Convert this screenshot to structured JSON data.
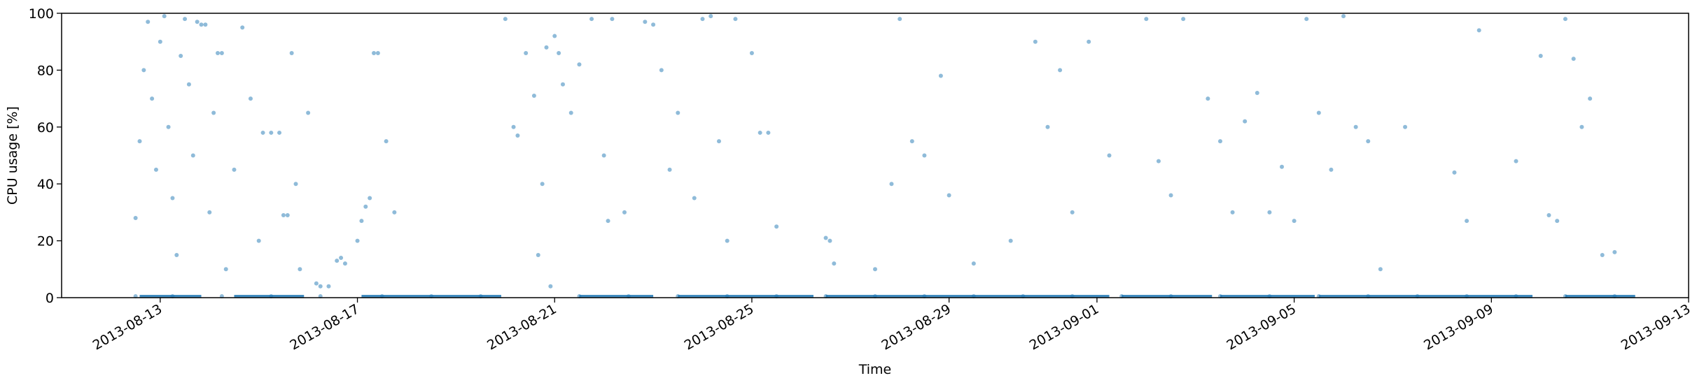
{
  "chart_data": {
    "type": "scatter",
    "title": "",
    "xlabel": "Time",
    "ylabel": "CPU usage [%]",
    "xlim": [
      "2013-08-11",
      "2013-09-13"
    ],
    "ylim": [
      0,
      100
    ],
    "grid": false,
    "legend": "none",
    "marker_color": "#1f77b4",
    "x_ticks": [
      "2013-08-13",
      "2013-08-17",
      "2013-08-21",
      "2013-08-25",
      "2013-08-29",
      "2013-09-01",
      "2013-09-05",
      "2013-09-09",
      "2013-09-13"
    ],
    "y_ticks": [
      "0",
      "20",
      "40",
      "60",
      "80",
      "100"
    ],
    "series": [
      {
        "values_note_free": true,
        "points": [
          [
            "2013-08-12T12:00",
            28
          ],
          [
            "2013-08-12T14:00",
            55
          ],
          [
            "2013-08-12T16:00",
            80
          ],
          [
            "2013-08-12T18:00",
            97
          ],
          [
            "2013-08-12T20:00",
            70
          ],
          [
            "2013-08-12T22:00",
            45
          ],
          [
            "2013-08-13T00:00",
            90
          ],
          [
            "2013-08-13T02:00",
            99
          ],
          [
            "2013-08-13T04:00",
            60
          ],
          [
            "2013-08-13T06:00",
            35
          ],
          [
            "2013-08-13T08:00",
            15
          ],
          [
            "2013-08-13T10:00",
            85
          ],
          [
            "2013-08-13T12:00",
            98
          ],
          [
            "2013-08-13T14:00",
            75
          ],
          [
            "2013-08-13T16:00",
            50
          ],
          [
            "2013-08-13T18:00",
            97
          ],
          [
            "2013-08-13T20:00",
            96
          ],
          [
            "2013-08-13T22:00",
            96
          ],
          [
            "2013-08-14T00:00",
            30
          ],
          [
            "2013-08-14T02:00",
            65
          ],
          [
            "2013-08-14T04:00",
            86
          ],
          [
            "2013-08-14T06:00",
            86
          ],
          [
            "2013-08-14T08:00",
            10
          ],
          [
            "2013-08-14T12:00",
            45
          ],
          [
            "2013-08-14T16:00",
            95
          ],
          [
            "2013-08-14T20:00",
            70
          ],
          [
            "2013-08-15T00:00",
            20
          ],
          [
            "2013-08-15T02:00",
            58
          ],
          [
            "2013-08-15T06:00",
            58
          ],
          [
            "2013-08-15T10:00",
            58
          ],
          [
            "2013-08-15T12:00",
            29
          ],
          [
            "2013-08-15T14:00",
            29
          ],
          [
            "2013-08-15T16:00",
            86
          ],
          [
            "2013-08-15T18:00",
            40
          ],
          [
            "2013-08-15T20:00",
            10
          ],
          [
            "2013-08-16T00:00",
            65
          ],
          [
            "2013-08-16T04:00",
            5
          ],
          [
            "2013-08-16T06:00",
            4
          ],
          [
            "2013-08-16T10:00",
            4
          ],
          [
            "2013-08-16T14:00",
            13
          ],
          [
            "2013-08-16T16:00",
            14
          ],
          [
            "2013-08-16T18:00",
            12
          ],
          [
            "2013-08-17T00:00",
            20
          ],
          [
            "2013-08-17T02:00",
            27
          ],
          [
            "2013-08-17T04:00",
            32
          ],
          [
            "2013-08-17T06:00",
            35
          ],
          [
            "2013-08-17T08:00",
            86
          ],
          [
            "2013-08-17T10:00",
            86
          ],
          [
            "2013-08-17T14:00",
            55
          ],
          [
            "2013-08-17T18:00",
            30
          ],
          [
            "2013-08-20T00:00",
            98
          ],
          [
            "2013-08-20T04:00",
            60
          ],
          [
            "2013-08-20T06:00",
            57
          ],
          [
            "2013-08-20T10:00",
            86
          ],
          [
            "2013-08-20T14:00",
            71
          ],
          [
            "2013-08-20T16:00",
            15
          ],
          [
            "2013-08-20T18:00",
            40
          ],
          [
            "2013-08-20T20:00",
            88
          ],
          [
            "2013-08-20T22:00",
            4
          ],
          [
            "2013-08-21T00:00",
            92
          ],
          [
            "2013-08-21T02:00",
            86
          ],
          [
            "2013-08-21T04:00",
            75
          ],
          [
            "2013-08-21T08:00",
            65
          ],
          [
            "2013-08-21T12:00",
            82
          ],
          [
            "2013-08-21T18:00",
            98
          ],
          [
            "2013-08-22T00:00",
            50
          ],
          [
            "2013-08-22T02:00",
            27
          ],
          [
            "2013-08-22T04:00",
            98
          ],
          [
            "2013-08-22T10:00",
            30
          ],
          [
            "2013-08-22T20:00",
            97
          ],
          [
            "2013-08-23T00:00",
            96
          ],
          [
            "2013-08-23T04:00",
            80
          ],
          [
            "2013-08-23T08:00",
            45
          ],
          [
            "2013-08-23T12:00",
            65
          ],
          [
            "2013-08-23T20:00",
            35
          ],
          [
            "2013-08-24T00:00",
            98
          ],
          [
            "2013-08-24T04:00",
            99
          ],
          [
            "2013-08-24T08:00",
            55
          ],
          [
            "2013-08-24T12:00",
            20
          ],
          [
            "2013-08-24T16:00",
            98
          ],
          [
            "2013-08-25T00:00",
            86
          ],
          [
            "2013-08-25T04:00",
            58
          ],
          [
            "2013-08-25T08:00",
            58
          ],
          [
            "2013-08-25T12:00",
            25
          ],
          [
            "2013-08-26T12:00",
            21
          ],
          [
            "2013-08-26T14:00",
            20
          ],
          [
            "2013-08-26T16:00",
            12
          ],
          [
            "2013-08-27T12:00",
            10
          ],
          [
            "2013-08-27T20:00",
            40
          ],
          [
            "2013-08-28T00:00",
            98
          ],
          [
            "2013-08-28T06:00",
            55
          ],
          [
            "2013-08-28T12:00",
            50
          ],
          [
            "2013-08-28T20:00",
            78
          ],
          [
            "2013-08-29T00:00",
            36
          ],
          [
            "2013-08-29T12:00",
            12
          ],
          [
            "2013-08-30T06:00",
            20
          ],
          [
            "2013-08-30T18:00",
            90
          ],
          [
            "2013-08-31T00:00",
            60
          ],
          [
            "2013-08-31T06:00",
            80
          ],
          [
            "2013-08-31T12:00",
            30
          ],
          [
            "2013-08-31T20:00",
            90
          ],
          [
            "2013-09-01T06:00",
            50
          ],
          [
            "2013-09-02T00:00",
            98
          ],
          [
            "2013-09-02T06:00",
            48
          ],
          [
            "2013-09-02T12:00",
            36
          ],
          [
            "2013-09-02T18:00",
            98
          ],
          [
            "2013-09-03T06:00",
            70
          ],
          [
            "2013-09-03T12:00",
            55
          ],
          [
            "2013-09-03T18:00",
            30
          ],
          [
            "2013-09-04T00:00",
            62
          ],
          [
            "2013-09-04T06:00",
            72
          ],
          [
            "2013-09-04T12:00",
            30
          ],
          [
            "2013-09-04T18:00",
            46
          ],
          [
            "2013-09-05T00:00",
            27
          ],
          [
            "2013-09-05T06:00",
            98
          ],
          [
            "2013-09-05T12:00",
            65
          ],
          [
            "2013-09-05T18:00",
            45
          ],
          [
            "2013-09-06T00:00",
            99
          ],
          [
            "2013-09-06T06:00",
            60
          ],
          [
            "2013-09-06T12:00",
            55
          ],
          [
            "2013-09-06T18:00",
            10
          ],
          [
            "2013-09-07T06:00",
            60
          ],
          [
            "2013-09-08T06:00",
            44
          ],
          [
            "2013-09-08T12:00",
            27
          ],
          [
            "2013-09-08T18:00",
            94
          ],
          [
            "2013-09-09T12:00",
            48
          ],
          [
            "2013-09-10T00:00",
            85
          ],
          [
            "2013-09-10T04:00",
            29
          ],
          [
            "2013-09-10T08:00",
            27
          ],
          [
            "2013-09-10T12:00",
            98
          ],
          [
            "2013-09-10T16:00",
            84
          ],
          [
            "2013-09-10T20:00",
            60
          ],
          [
            "2013-09-11T00:00",
            70
          ],
          [
            "2013-09-11T06:00",
            15
          ],
          [
            "2013-09-11T12:00",
            16
          ],
          [
            "2013-08-12T12:00",
            0.5
          ],
          [
            "2013-08-13T06:00",
            0.5
          ],
          [
            "2013-08-14T06:00",
            0.5
          ],
          [
            "2013-08-15T06:00",
            0.5
          ],
          [
            "2013-08-16T06:00",
            0.5
          ],
          [
            "2013-08-17T12:00",
            0.5
          ],
          [
            "2013-08-18T12:00",
            0.5
          ],
          [
            "2013-08-19T12:00",
            0.5
          ],
          [
            "2013-08-21T12:00",
            0.5
          ],
          [
            "2013-08-22T12:00",
            0.5
          ],
          [
            "2013-08-23T12:00",
            0.5
          ],
          [
            "2013-08-24T12:00",
            0.5
          ],
          [
            "2013-08-25T12:00",
            0.5
          ],
          [
            "2013-08-26T12:00",
            0.5
          ],
          [
            "2013-08-27T12:00",
            0.5
          ],
          [
            "2013-08-28T12:00",
            0.5
          ],
          [
            "2013-08-29T12:00",
            0.5
          ],
          [
            "2013-08-30T12:00",
            0.5
          ],
          [
            "2013-08-31T12:00",
            0.5
          ],
          [
            "2013-09-01T12:00",
            0.5
          ],
          [
            "2013-09-02T12:00",
            0.5
          ],
          [
            "2013-09-03T12:00",
            0.5
          ],
          [
            "2013-09-04T12:00",
            0.5
          ],
          [
            "2013-09-05T12:00",
            0.5
          ],
          [
            "2013-09-06T12:00",
            0.5
          ],
          [
            "2013-09-07T12:00",
            0.5
          ],
          [
            "2013-09-08T12:00",
            0.5
          ],
          [
            "2013-09-09T12:00",
            0.5
          ],
          [
            "2013-09-10T12:00",
            0.5
          ],
          [
            "2013-09-11T12:00",
            0.5
          ]
        ]
      }
    ],
    "baseline_segments": [
      [
        "2013-08-12T14:00",
        "2013-08-13T20:00"
      ],
      [
        "2013-08-14T12:00",
        "2013-08-15T22:00"
      ],
      [
        "2013-08-17T02:00",
        "2013-08-19T22:00"
      ],
      [
        "2013-08-21T12:00",
        "2013-08-23T00:00"
      ],
      [
        "2013-08-23T12:00",
        "2013-08-26T06:00"
      ],
      [
        "2013-08-26T12:00",
        "2013-09-01T06:00"
      ],
      [
        "2013-09-01T12:00",
        "2013-09-03T08:00"
      ],
      [
        "2013-09-03T12:00",
        "2013-09-05T10:00"
      ],
      [
        "2013-09-05T12:00",
        "2013-09-09T20:00"
      ],
      [
        "2013-09-10T12:00",
        "2013-09-11T22:00"
      ]
    ]
  }
}
